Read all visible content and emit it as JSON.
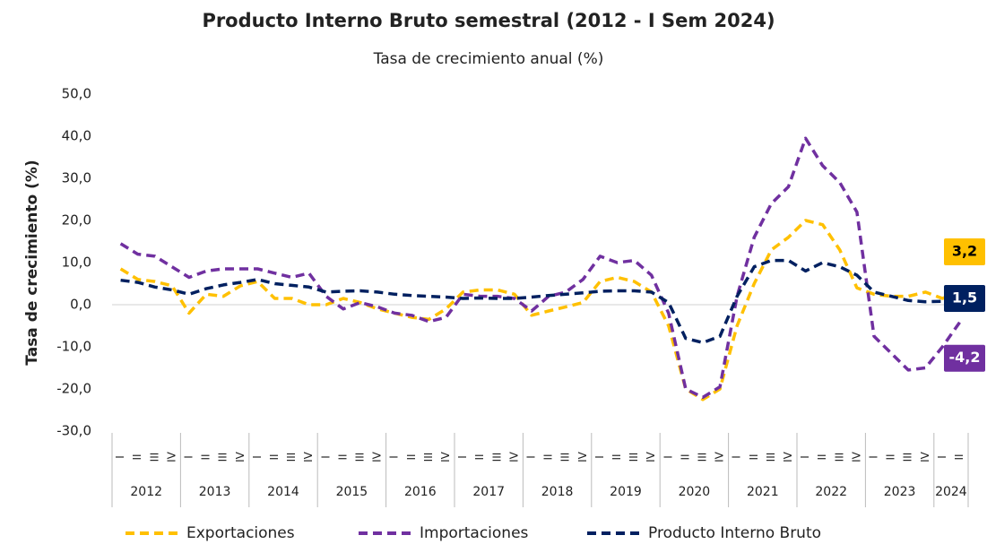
{
  "chart_data": {
    "type": "line",
    "title": "Producto Interno Bruto semestral (2012 - I Sem 2024)",
    "subtitle": "Tasa de crecimiento anual (%)",
    "y_label": "Tasa de crecimiento (%)",
    "categories": [
      "I",
      "II",
      "III",
      "IV",
      "I",
      "II",
      "III",
      "IV",
      "I",
      "II",
      "III",
      "IV",
      "I",
      "II",
      "III",
      "IV",
      "I",
      "II",
      "III",
      "IV",
      "I",
      "II",
      "III",
      "IV",
      "I",
      "II",
      "III",
      "IV",
      "I",
      "II",
      "III",
      "IV",
      "I",
      "II",
      "III",
      "IV",
      "I",
      "II",
      "III",
      "IV",
      "I",
      "II",
      "III",
      "IV",
      "I",
      "II",
      "III",
      "IV",
      "I",
      "II"
    ],
    "years": [
      "2012",
      "2013",
      "2014",
      "2015",
      "2016",
      "2017",
      "2018",
      "2019",
      "2020",
      "2021",
      "2022",
      "2023",
      "2024"
    ],
    "ylim": [
      -30,
      50
    ],
    "yticks": [
      {
        "value": -30,
        "label": "-30,0"
      },
      {
        "value": -20,
        "label": "-20,0"
      },
      {
        "value": -10,
        "label": "-10,0"
      },
      {
        "value": 0,
        "label": "0,0"
      },
      {
        "value": 10,
        "label": "10,0"
      },
      {
        "value": 20,
        "label": "20,0"
      },
      {
        "value": 30,
        "label": "30,0"
      },
      {
        "value": 40,
        "label": "40,0"
      },
      {
        "value": 50,
        "label": "50,0"
      }
    ],
    "legend": "bottom",
    "series": [
      {
        "name": "Exportaciones",
        "color": "#FFC000",
        "label_text_color": "#000000",
        "values": [
          8.5,
          6.0,
          5.5,
          4.5,
          -2.0,
          2.5,
          2.0,
          4.5,
          5.5,
          1.5,
          1.5,
          0,
          0,
          1.5,
          0.5,
          -1.0,
          -2.0,
          -3.0,
          -3.5,
          -1.0,
          3.0,
          3.5,
          3.5,
          2.5,
          -2.5,
          -1.5,
          -0.5,
          0.5,
          5.5,
          6.5,
          5.5,
          3.0,
          -5.0,
          -20.0,
          -22.5,
          -20.0,
          -5.0,
          5.0,
          13.0,
          16.0,
          20.0,
          19.0,
          13.0,
          4.0,
          2.5,
          2.0,
          2.0,
          3.0,
          1.5,
          3.2
        ],
        "value_labels": [
          null,
          null,
          null,
          null,
          null,
          null,
          null,
          null,
          null,
          null,
          null,
          null,
          null,
          null,
          null,
          null,
          null,
          null,
          null,
          null,
          null,
          null,
          null,
          null,
          null,
          null,
          null,
          null,
          null,
          null,
          null,
          null,
          null,
          null,
          null,
          null,
          null,
          null,
          null,
          null,
          null,
          null,
          null,
          null,
          null,
          null,
          null,
          null,
          null,
          "3,2"
        ]
      },
      {
        "name": "Importaciones",
        "color": "#7030A0",
        "label_text_color": "#ffffff",
        "values": [
          14.5,
          12.0,
          11.5,
          9.0,
          6.5,
          8.0,
          8.5,
          8.5,
          8.5,
          7.5,
          6.5,
          7.5,
          2.0,
          -1.0,
          0.5,
          -0.5,
          -2.0,
          -2.5,
          -4.0,
          -3.0,
          2.5,
          2.0,
          2.0,
          1.5,
          -1.5,
          2.0,
          3.0,
          6.0,
          11.5,
          10.0,
          10.5,
          7.0,
          -2.0,
          -20.0,
          -22.0,
          -19.5,
          2.0,
          16.0,
          24.0,
          28.0,
          39.5,
          33.0,
          29.0,
          22.0,
          -7.5,
          -11.5,
          -15.5,
          -15.0,
          -10.0,
          -4.2
        ],
        "value_labels": [
          null,
          null,
          null,
          null,
          null,
          null,
          null,
          null,
          null,
          null,
          null,
          null,
          null,
          null,
          null,
          null,
          null,
          null,
          null,
          null,
          null,
          null,
          null,
          null,
          null,
          null,
          null,
          null,
          null,
          null,
          null,
          null,
          null,
          null,
          null,
          null,
          null,
          null,
          null,
          null,
          null,
          null,
          null,
          null,
          null,
          null,
          null,
          null,
          null,
          "-4,2"
        ]
      },
      {
        "name": "Producto Interno Bruto",
        "color": "#002060",
        "label_text_color": "#ffffff",
        "values": [
          5.8,
          5.3,
          4.2,
          3.5,
          2.5,
          3.8,
          4.7,
          5.3,
          6.0,
          5.0,
          4.6,
          4.2,
          3.0,
          3.2,
          3.3,
          3.0,
          2.5,
          2.2,
          2.0,
          1.8,
          1.5,
          1.6,
          1.5,
          1.5,
          1.8,
          2.2,
          2.5,
          2.8,
          3.2,
          3.3,
          3.3,
          3.0,
          0.5,
          -8.0,
          -9.0,
          -7.5,
          2.0,
          9.0,
          10.5,
          10.5,
          8.0,
          10.0,
          9.0,
          7.0,
          3.0,
          2.0,
          1.0,
          0.7,
          0.8,
          1.5
        ],
        "value_labels": [
          null,
          null,
          null,
          null,
          null,
          null,
          null,
          null,
          null,
          null,
          null,
          null,
          null,
          null,
          null,
          null,
          null,
          null,
          null,
          null,
          null,
          null,
          null,
          null,
          null,
          null,
          null,
          null,
          null,
          null,
          null,
          null,
          null,
          null,
          null,
          null,
          null,
          null,
          null,
          null,
          null,
          null,
          null,
          null,
          null,
          null,
          null,
          null,
          null,
          "1,5"
        ]
      }
    ]
  }
}
